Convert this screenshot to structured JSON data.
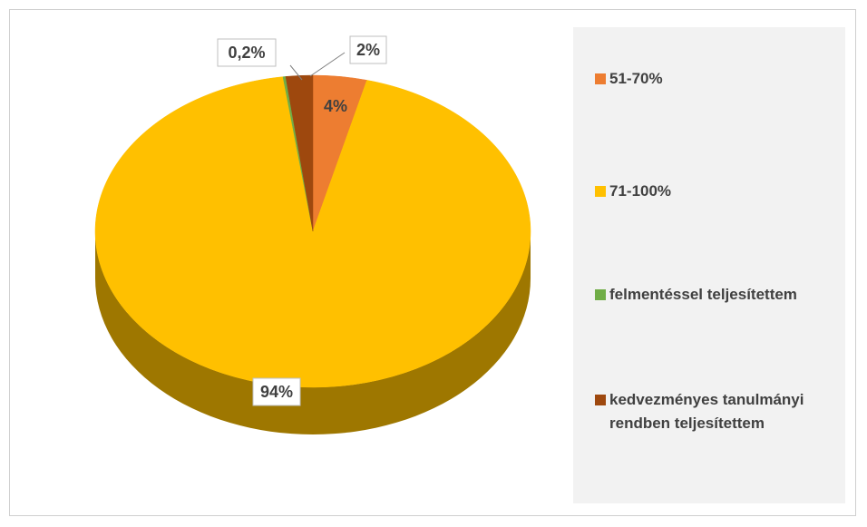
{
  "chart_data": {
    "type": "pie",
    "categories": [
      "51-70%",
      "71-100%",
      "felmentéssel teljesítettem",
      "kedvezményes tanulmányi rendben teljesítettem"
    ],
    "values": [
      4,
      94,
      0.2,
      2
    ],
    "value_labels": [
      "4%",
      "94%",
      "0,2%",
      "2%"
    ],
    "colors": [
      "#ED7D31",
      "#FFC000",
      "#70AD47",
      "#9E480E"
    ],
    "legend": "right"
  }
}
